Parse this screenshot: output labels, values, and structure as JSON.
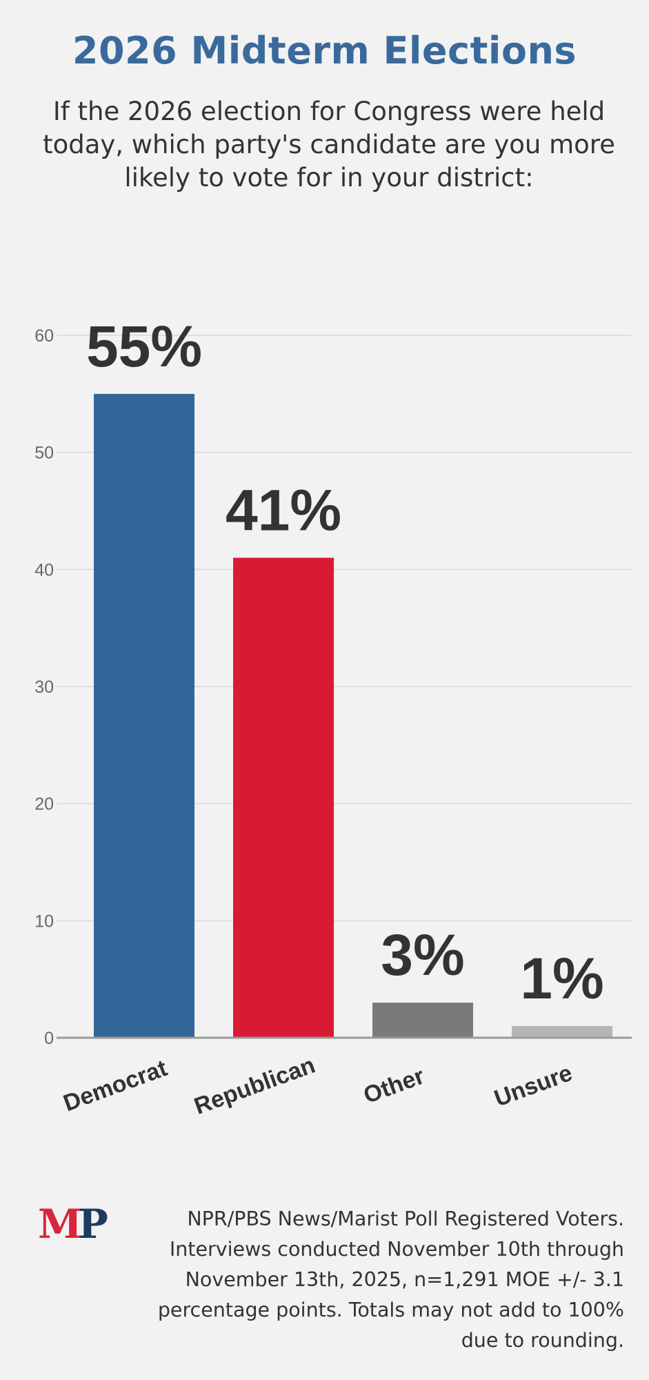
{
  "header": {
    "title": "2026 Midterm Elections",
    "subtitle": "If the 2026 election for Congress were held today, which party's candidate are you more likely to vote for in your district:"
  },
  "chart_data": {
    "type": "bar",
    "categories": [
      "Democrat",
      "Republican",
      "Other",
      "Unsure"
    ],
    "values": [
      55,
      41,
      3,
      1
    ],
    "data_labels": [
      "55%",
      "41%",
      "3%",
      "1%"
    ],
    "colors": [
      "#336699",
      "#d91a35",
      "#7a7a7a",
      "#b5b5b5"
    ],
    "ylim": [
      0,
      60
    ],
    "yticks": [
      0,
      10,
      20,
      30,
      40,
      50,
      60
    ],
    "grid": true,
    "legend": "none"
  },
  "footer": {
    "logo": {
      "m": "M",
      "p": "P"
    },
    "source": "NPR/PBS News/Marist Poll Registered Voters. Interviews conducted November 10th through November 13th, 2025, n=1,291 MOE +/- 3.1 percentage points. Totals may not add to 100% due to rounding."
  }
}
